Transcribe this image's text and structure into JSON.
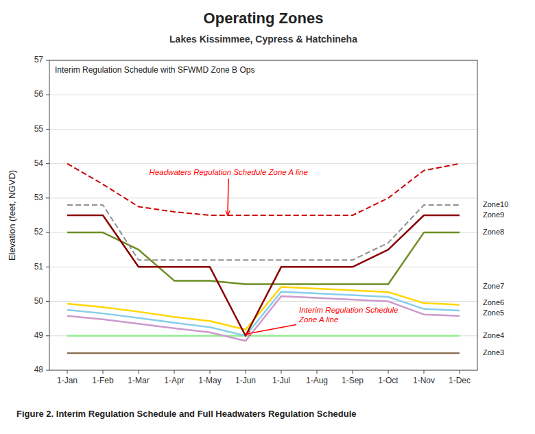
{
  "chart_data": {
    "type": "line",
    "title": "Operating Zones",
    "subtitle": "Lakes Kissimmee, Cypress & Hatchineha",
    "inner_label": "Interim Regulation Schedule with SFWMD Zone B Ops",
    "ylabel": "Elevation (feet, NGVD)",
    "caption": "Figure 2. Interim Regulation Schedule and Full Headwaters Regulation Schedule",
    "categories": [
      "1-Jan",
      "1-Feb",
      "1-Mar",
      "1-Apr",
      "1-May",
      "1-Jun",
      "1-Jul",
      "1-Aug",
      "1-Sep",
      "1-Oct",
      "1-Nov",
      "1-Dec"
    ],
    "ylim": [
      48,
      57
    ],
    "yticks": [
      48,
      49,
      50,
      51,
      52,
      53,
      54,
      55,
      56,
      57
    ],
    "grid": true,
    "series": [
      {
        "color": "#8B7355",
        "line_style": "solid",
        "values": [
          48.5,
          48.5,
          48.5,
          48.5,
          48.5,
          48.5,
          48.5,
          48.5,
          48.5,
          48.5,
          48.5,
          48.5
        ]
      },
      {
        "color": "#90EE90",
        "line_style": "solid",
        "values": [
          49.0,
          49.0,
          49.0,
          49.0,
          49.0,
          49.0,
          49.0,
          49.0,
          49.0,
          49.0,
          49.0,
          49.0
        ]
      },
      {
        "color": "#CC99CC",
        "line_style": "solid",
        "values": [
          49.58,
          49.48,
          49.35,
          49.22,
          49.1,
          48.85,
          50.15,
          50.1,
          50.05,
          50.0,
          49.62,
          49.58
        ]
      },
      {
        "color": "#87CEEB",
        "line_style": "solid",
        "values": [
          49.75,
          49.65,
          49.52,
          49.38,
          49.25,
          49.0,
          50.28,
          50.23,
          50.18,
          50.13,
          49.78,
          49.73
        ]
      },
      {
        "color": "#FFD700",
        "line_style": "solid",
        "values": [
          49.93,
          49.83,
          49.7,
          49.55,
          49.43,
          49.18,
          50.42,
          50.37,
          50.32,
          50.27,
          49.95,
          49.9
        ]
      },
      {
        "color": "#6B8E23",
        "line_style": "solid",
        "values": [
          52.0,
          52.0,
          51.5,
          50.6,
          50.6,
          50.5,
          50.5,
          50.5,
          50.5,
          50.5,
          52.0,
          52.0
        ]
      },
      {
        "color": "#909090",
        "line_style": "dashed",
        "values": [
          52.8,
          52.8,
          51.2,
          51.2,
          51.2,
          51.2,
          51.2,
          51.2,
          51.2,
          51.7,
          52.8,
          52.8
        ]
      },
      {
        "color": "#CC0000",
        "line_style": "dashed",
        "values": [
          54.0,
          53.4,
          52.75,
          52.6,
          52.5,
          52.5,
          52.5,
          52.5,
          52.5,
          53.0,
          53.8,
          54.0
        ]
      },
      {
        "color": "#8B0000",
        "line_style": "solid",
        "values": [
          52.5,
          52.5,
          51.0,
          51.0,
          51.0,
          49.0,
          51.0,
          51.0,
          51.0,
          51.5,
          52.5,
          52.5
        ]
      }
    ],
    "zone_labels": [
      {
        "text": "Zone10",
        "y": 52.8
      },
      {
        "text": "Zone9",
        "y": 52.5
      },
      {
        "text": "Zone8",
        "y": 52.0
      },
      {
        "text": "Zone7",
        "y": 50.42
      },
      {
        "text": "Zone6",
        "y": 49.95
      },
      {
        "text": "Zone5",
        "y": 49.65
      },
      {
        "text": "Zone4",
        "y": 49.0
      },
      {
        "text": "Zone3",
        "y": 48.5
      }
    ],
    "annotations": [
      {
        "text": "Headwaters Regulation Schedule Zone A line",
        "xy": [
          4.5,
          52.5
        ],
        "text_xy": [
          2.3,
          53.85
        ],
        "color": "red"
      },
      {
        "text": "Interim Regulation Schedule\nZone A line",
        "xy": [
          5.0,
          49.05
        ],
        "text_xy": [
          6.5,
          49.85
        ],
        "color": "red"
      }
    ]
  }
}
